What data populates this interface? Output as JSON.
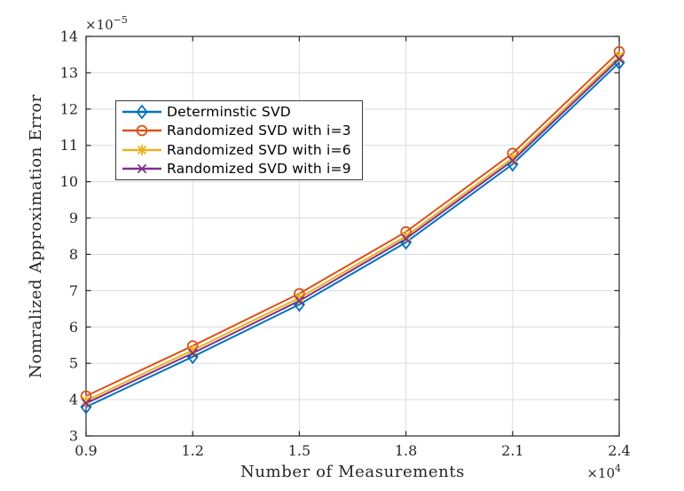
{
  "figure": {
    "background": "#ffffff",
    "axis_color": "#262626",
    "grid_color": "#dcdcdc"
  },
  "chart_data": {
    "type": "line",
    "title": "",
    "xlabel": "Number of Measurements",
    "ylabel": "Nomralized Approximation Error",
    "grid": true,
    "legend_position": "upper-left-inside",
    "x_axis": {
      "range": [
        0.9,
        2.4
      ],
      "ticks": [
        0.9,
        1.2,
        1.5,
        1.8,
        2.1,
        2.4
      ],
      "tick_labels": [
        "0.9",
        "1.2",
        "1.5",
        "1.8",
        "2.1",
        "2.4"
      ],
      "exponent_prefix": "×10",
      "exponent": "4",
      "unit_multiplier": "1e4"
    },
    "y_axis": {
      "range": [
        3,
        14
      ],
      "ticks": [
        3,
        4,
        5,
        6,
        7,
        8,
        9,
        10,
        11,
        12,
        13,
        14
      ],
      "tick_labels": [
        "3",
        "4",
        "5",
        "6",
        "7",
        "8",
        "9",
        "10",
        "11",
        "12",
        "13",
        "14"
      ],
      "exponent_prefix": "×10",
      "exponent": "−5",
      "unit_multiplier": "1e-5"
    },
    "x": [
      0.9,
      1.2,
      1.5,
      1.8,
      2.1,
      2.4
    ],
    "series": [
      {
        "name": "Determinstic SVD",
        "color": "#0072BD",
        "marker": "diamond",
        "values": [
          3.8,
          5.18,
          6.62,
          8.33,
          10.48,
          13.28
        ]
      },
      {
        "name": "Randomized SVD with i=3",
        "color": "#D95319",
        "marker": "circle",
        "values": [
          4.1,
          5.48,
          6.92,
          8.62,
          10.78,
          13.58
        ]
      },
      {
        "name": "Randomized SVD with i=6",
        "color": "#EDB120",
        "marker": "asterisk",
        "values": [
          3.97,
          5.36,
          6.8,
          8.5,
          10.65,
          13.45
        ]
      },
      {
        "name": "Randomized SVD with i=9",
        "color": "#7E2F8E",
        "marker": "x",
        "values": [
          3.9,
          5.28,
          6.72,
          8.43,
          10.58,
          13.38
        ]
      }
    ]
  }
}
